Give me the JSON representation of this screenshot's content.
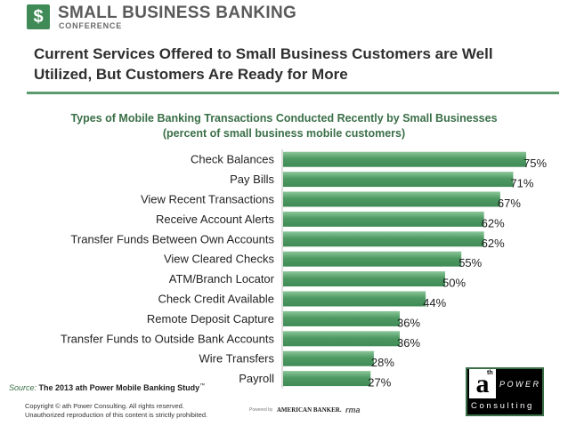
{
  "header": {
    "logo_mark": "$",
    "logo_title": "SMALL BUSINESS BANKING",
    "logo_subtitle": "CONFERENCE"
  },
  "page_title": "Current Services Offered to Small Business Customers are Well Utilized, But Customers Are Ready for More",
  "colors": {
    "accent": "#5b9a6c",
    "bar": "#3f8a56",
    "bar_light": "#8cc79a",
    "title_green": "#3a6f47"
  },
  "chart_data": {
    "type": "bar",
    "orientation": "horizontal",
    "title": "Types of Mobile Banking Transactions Conducted Recently by Small Businesses",
    "subtitle": "(percent of small business mobile customers)",
    "categories": [
      "Check Balances",
      "Pay Bills",
      "View Recent Transactions",
      "Receive Account Alerts",
      "Transfer Funds Between Own Accounts",
      "View Cleared Checks",
      "ATM/Branch Locator",
      "Check Credit Available",
      "Remote Deposit Capture",
      "Transfer Funds to Outside Bank Accounts",
      "Wire Transfers",
      "Payroll"
    ],
    "values": [
      75,
      71,
      67,
      62,
      62,
      55,
      50,
      44,
      36,
      36,
      28,
      27
    ],
    "value_labels": [
      "75%",
      "71%",
      "67%",
      "62%",
      "62%",
      "55%",
      "50%",
      "44%",
      "36%",
      "36%",
      "28%",
      "27%"
    ],
    "xlim": [
      0,
      75
    ],
    "xlabel": "",
    "ylabel": "",
    "grid": false,
    "legend": "none"
  },
  "source": {
    "prefix": "Source:",
    "text": "The 2013 ath Power Mobile Banking Study",
    "tm": "™"
  },
  "copyright": {
    "line1": "Copyright © ath Power Consulting.  All rights reserved.",
    "line2": "Unauthorized reproduction of this content is strictly prohibited."
  },
  "sponsors": {
    "powered_by": "Powered by",
    "american_banker": "AMERICAN BANKER.",
    "rma": "rma"
  },
  "ath_logo": {
    "letter": "a",
    "superscript": "th",
    "power": "POWER",
    "consulting": "Consulting"
  }
}
